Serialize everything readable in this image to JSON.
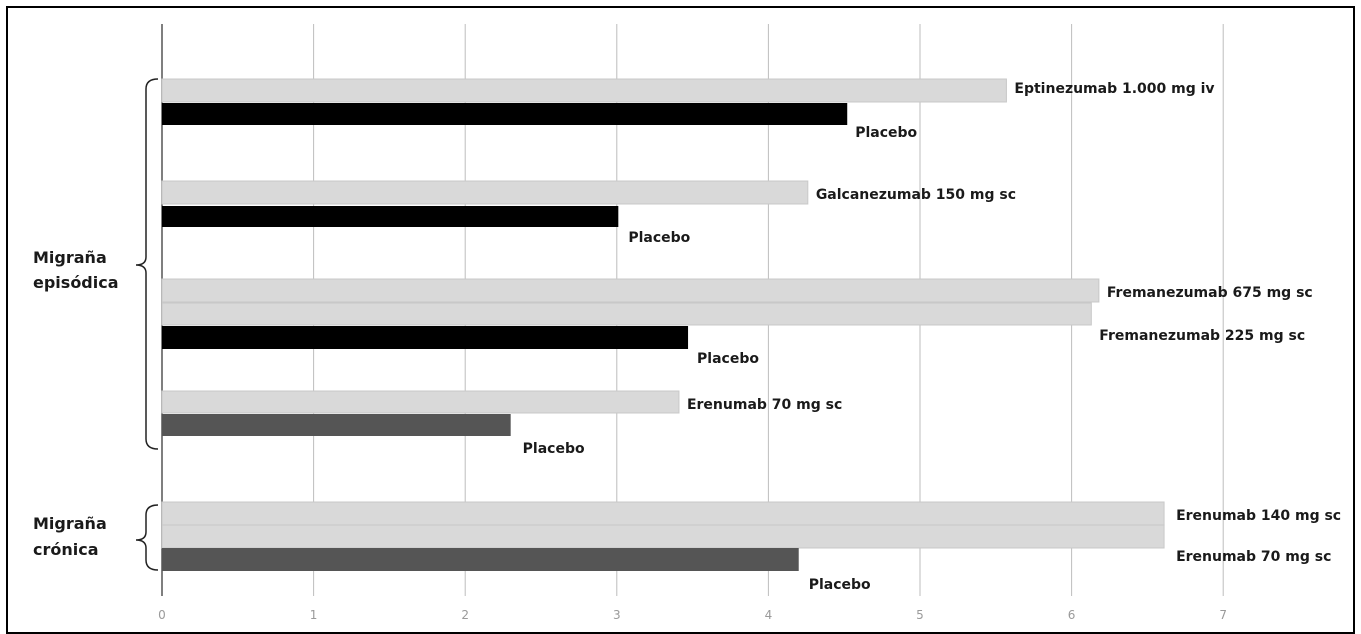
{
  "chart_data": {
    "type": "bar",
    "orientation": "horizontal",
    "title": "",
    "xlabel": "",
    "ylabel": "",
    "xlim": [
      0,
      7
    ],
    "ticks": [
      "0",
      "1",
      "2",
      "3",
      "4",
      "5",
      "6",
      "7"
    ],
    "grid": true,
    "legend": "none",
    "colors": {
      "drug": "#d9d9d9",
      "placebo_episodic": "#000000",
      "placebo_dark": "#555555"
    },
    "groups": [
      {
        "name": "Migraña episódica",
        "line1": "Migraña",
        "line2": "episódica"
      },
      {
        "name": "Migraña crónica",
        "line1": "Migraña",
        "line2": "crónica"
      }
    ],
    "bars": [
      {
        "label": "Eptinezumab 1.000 mg iv",
        "value": 5.57,
        "kind": "drug"
      },
      {
        "label": "Placebo",
        "value": 4.52,
        "kind": "placebo_episodic"
      },
      {
        "label": "Galcanezumab 150 mg sc",
        "value": 4.26,
        "kind": "drug"
      },
      {
        "label": "Placebo",
        "value": 3.01,
        "kind": "placebo_episodic"
      },
      {
        "label": "Fremanezumab 675 mg sc",
        "value": 6.18,
        "kind": "drug"
      },
      {
        "label": "Fremanezumab 225 mg sc",
        "value": 6.13,
        "kind": "drug"
      },
      {
        "label": "Placebo",
        "value": 3.47,
        "kind": "placebo_episodic"
      },
      {
        "label": "Erenumab 70 mg sc",
        "value": 3.41,
        "kind": "drug"
      },
      {
        "label": "Placebo",
        "value": 2.3,
        "kind": "placebo_dark"
      },
      {
        "label": "Erenumab 140 mg sc",
        "value": 6.61,
        "kind": "drug"
      },
      {
        "label": "Erenumab 70 mg sc",
        "value": 6.61,
        "kind": "drug"
      },
      {
        "label": "Placebo",
        "value": 4.2,
        "kind": "placebo_dark"
      }
    ]
  }
}
